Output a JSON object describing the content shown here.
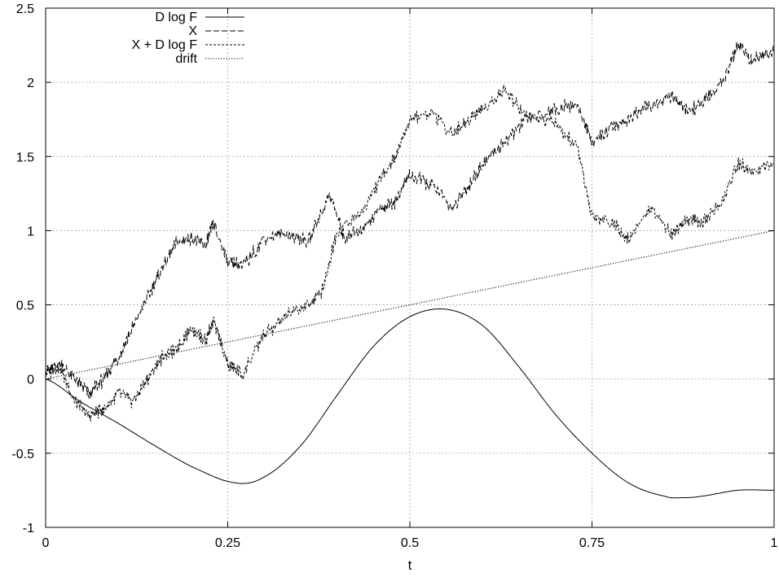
{
  "chart_data": {
    "type": "line",
    "title": "",
    "xlabel": "t",
    "ylabel": "",
    "xlim": [
      0,
      1
    ],
    "ylim": [
      -1,
      2.5
    ],
    "x_ticks": [
      0,
      0.25,
      0.5,
      0.75,
      1
    ],
    "x_tick_labels": [
      "0",
      "0.25",
      "0.5",
      "0.75",
      "1"
    ],
    "y_ticks": [
      -1,
      -0.5,
      0,
      0.5,
      1,
      1.5,
      2,
      2.5
    ],
    "y_tick_labels": [
      "-1",
      "-0.5",
      "0",
      "0.5",
      "1",
      "1.5",
      "2",
      "2.5"
    ],
    "grid": true,
    "legend_position": "top-left",
    "series": [
      {
        "name": "D log F",
        "style": "solid",
        "x": [
          0,
          0.05,
          0.1,
          0.15,
          0.2,
          0.26,
          0.3,
          0.35,
          0.4,
          0.45,
          0.5,
          0.55,
          0.6,
          0.65,
          0.7,
          0.75,
          0.8,
          0.85,
          0.875,
          0.9,
          0.95,
          1.0
        ],
        "values": [
          0,
          -0.16,
          -0.3,
          -0.45,
          -0.59,
          -0.7,
          -0.66,
          -0.45,
          -0.11,
          0.22,
          0.42,
          0.47,
          0.36,
          0.08,
          -0.24,
          -0.5,
          -0.7,
          -0.79,
          -0.8,
          -0.79,
          -0.75,
          -0.75
        ]
      },
      {
        "name": "X",
        "style": "dashed",
        "x": [
          0,
          0.02,
          0.04,
          0.06,
          0.08,
          0.1,
          0.12,
          0.14,
          0.16,
          0.18,
          0.2,
          0.22,
          0.23,
          0.25,
          0.27,
          0.3,
          0.33,
          0.36,
          0.39,
          0.41,
          0.43,
          0.46,
          0.48,
          0.5,
          0.53,
          0.56,
          0.58,
          0.6,
          0.63,
          0.66,
          0.7,
          0.73,
          0.75,
          0.78,
          0.8,
          0.83,
          0.86,
          0.88,
          0.9,
          0.93,
          0.95,
          0.97,
          1.0
        ],
        "values": [
          0.05,
          0.1,
          0.0,
          -0.1,
          0.0,
          0.15,
          0.35,
          0.55,
          0.75,
          0.92,
          0.95,
          0.9,
          1.05,
          0.8,
          0.75,
          0.95,
          0.98,
          0.92,
          1.25,
          0.95,
          1.0,
          1.15,
          1.2,
          1.38,
          1.3,
          1.15,
          1.3,
          1.45,
          1.6,
          1.75,
          1.82,
          1.85,
          1.6,
          1.7,
          1.75,
          1.85,
          1.9,
          1.8,
          1.85,
          2.0,
          2.25,
          2.15,
          2.2
        ]
      },
      {
        "name": "X + D log F",
        "style": "short-dashed",
        "x": [
          0,
          0.02,
          0.04,
          0.06,
          0.08,
          0.1,
          0.12,
          0.14,
          0.16,
          0.18,
          0.2,
          0.22,
          0.23,
          0.25,
          0.27,
          0.3,
          0.33,
          0.36,
          0.38,
          0.4,
          0.43,
          0.46,
          0.48,
          0.5,
          0.53,
          0.56,
          0.58,
          0.6,
          0.63,
          0.66,
          0.7,
          0.73,
          0.75,
          0.78,
          0.8,
          0.83,
          0.86,
          0.88,
          0.9,
          0.93,
          0.95,
          0.97,
          1.0
        ],
        "values": [
          0.05,
          0.08,
          -0.15,
          -0.25,
          -0.2,
          -0.1,
          -0.15,
          0.0,
          0.15,
          0.2,
          0.35,
          0.25,
          0.4,
          0.1,
          0.03,
          0.3,
          0.42,
          0.5,
          0.6,
          1.0,
          1.1,
          1.35,
          1.5,
          1.75,
          1.8,
          1.65,
          1.75,
          1.82,
          1.95,
          1.78,
          1.72,
          1.55,
          1.1,
          1.05,
          0.95,
          1.15,
          0.98,
          1.08,
          1.05,
          1.2,
          1.45,
          1.4,
          1.45
        ]
      },
      {
        "name": "drift",
        "style": "dotted",
        "x": [
          0,
          1
        ],
        "values": [
          0,
          1
        ]
      }
    ]
  }
}
